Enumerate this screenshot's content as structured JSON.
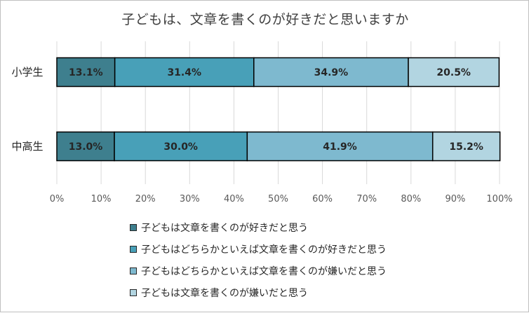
{
  "chart_data": {
    "type": "bar",
    "orientation": "horizontal",
    "stacked": "percent",
    "title": "子どもは、文章を書くのが好きだと思いますか",
    "categories": [
      "小学生",
      "中高生"
    ],
    "series": [
      {
        "name": "子どもは文章を書くのが好きだと思う",
        "values": [
          13.1,
          13.0
        ],
        "color": "#3e7f8e",
        "labels": [
          "13.1%",
          "13.0%"
        ]
      },
      {
        "name": "子どもはどちらかといえば文章を書くのが好きだと思う",
        "values": [
          31.4,
          30.0
        ],
        "color": "#48a0b8",
        "labels": [
          "31.4%",
          "30.0%"
        ]
      },
      {
        "name": "子どもはどちらかといえば文章を書くのが嫌いだと思う",
        "values": [
          34.9,
          41.9
        ],
        "color": "#7eb9cf",
        "labels": [
          "34.9%",
          "41.9%"
        ]
      },
      {
        "name": "子どもは文章を書くのが嫌いだと思う",
        "values": [
          20.5,
          15.2
        ],
        "color": "#b2d5e1",
        "labels": [
          "20.5%",
          "15.2%"
        ]
      }
    ],
    "xlim": [
      0,
      100
    ],
    "xticks": [
      "0%",
      "10%",
      "20%",
      "30%",
      "40%",
      "50%",
      "60%",
      "70%",
      "80%",
      "90%",
      "100%"
    ],
    "grid": true,
    "legend_position": "bottom"
  }
}
